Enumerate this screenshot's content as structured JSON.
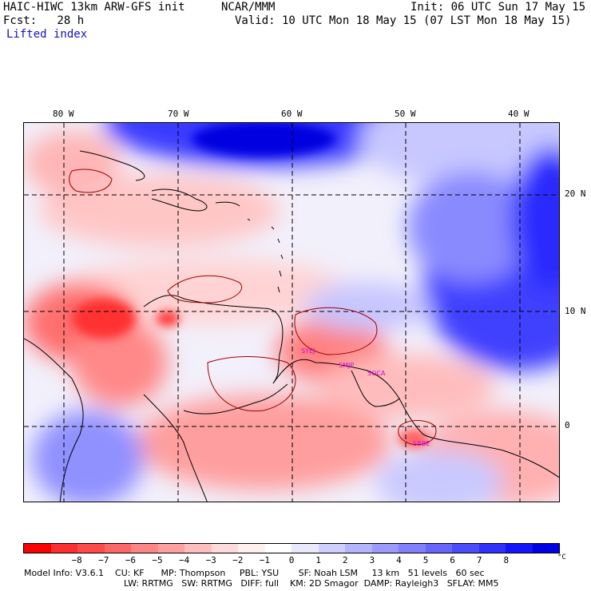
{
  "header": {
    "model": "HAIC-HIWC 13km ARW-GFS init",
    "center": "NCAR/MMM",
    "init": "Init: 06 UTC Sun 17 May 15",
    "fcst": "Fcst:   28 h",
    "valid": "Valid: 10 UTC Mon 18 May 15 (07 LST Mon 18 May 15)",
    "field": "Lifted index"
  },
  "map": {
    "lon_labels": [
      "80 W",
      "70 W",
      "60 W",
      "50 W",
      "40 W"
    ],
    "lat_labels": [
      "20 N",
      "10 N",
      "0"
    ],
    "stations": [
      "SYEJ",
      "SMJP",
      "SOCA",
      "SBBE"
    ]
  },
  "colorbar": {
    "colors": [
      "#ff0000",
      "#ff2e2e",
      "#ff4a4a",
      "#ff6666",
      "#ff8585",
      "#ffa0a0",
      "#ffbebe",
      "#ffdada",
      "#fff0f0",
      "#ffffff",
      "#e8e8ff",
      "#cfcfff",
      "#b4b4ff",
      "#9a9aff",
      "#8080ff",
      "#6666ff",
      "#4c4cff",
      "#3030ff",
      "#1414ff",
      "#0000e6"
    ],
    "labels": [
      "−8",
      "−7",
      "−6",
      "−5",
      "−4",
      "−3",
      "−2",
      "−1",
      "0",
      "1",
      "2",
      "3",
      "4",
      "5",
      "6",
      "7",
      "8"
    ],
    "unit": "°C"
  },
  "footer": {
    "line1": "Model Info: V3.6.1    CU: KF      MP: Thompson     PBL: YSU       SF: Noah LSM     13 km   51 levels   60 sec",
    "line2": "LW: RRTMG   SW: RRTMG   DIFF: full    KM: 2D Smagor  DAMP: Rayleigh3   SFLAY: MM5"
  }
}
